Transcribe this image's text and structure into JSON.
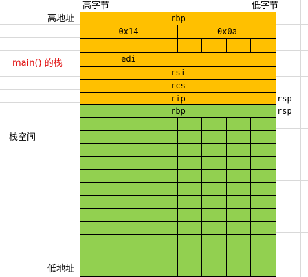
{
  "header": {
    "high_byte": "高字节",
    "low_byte": "低字节"
  },
  "left_labels": {
    "high_address": "高地址",
    "main_stack": "main() 的栈",
    "stack_space": "栈空间",
    "low_address": "低地址"
  },
  "stack": {
    "rbp_top": "rbp",
    "val_left": "0x14",
    "val_right": "0x0a",
    "edi": "edi",
    "rsi": "rsi",
    "rcs": "rcs",
    "rip": "rip",
    "rbp_new": "rbp"
  },
  "right_labels": {
    "rsp_old": "rsp",
    "rsp_new": "rsp"
  },
  "colors": {
    "main_frame": "#ffc000",
    "free_stack": "#92d050",
    "main_label": "#e01010"
  }
}
